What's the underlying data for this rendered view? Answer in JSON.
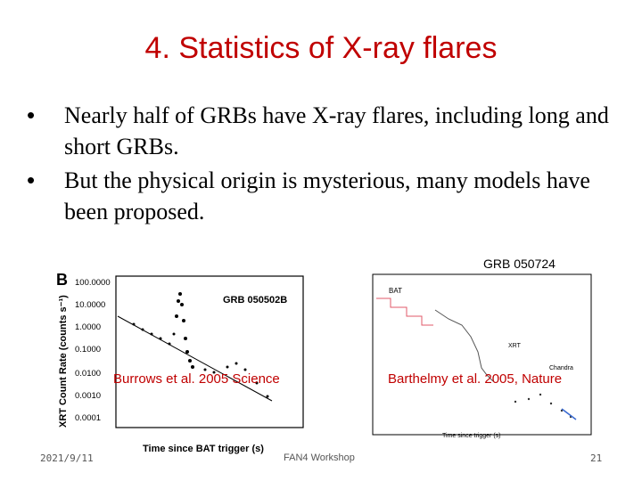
{
  "slide": {
    "title": "4. Statistics of X-ray flares",
    "bullets": [
      "Nearly half of GRBs have X-ray flares, including long and short GRBs.",
      "But the physical origin is mysterious, many models have been proposed."
    ],
    "bullet_symbol": "•"
  },
  "figures": {
    "left": {
      "panel_letter": "B",
      "grb_label": "GRB 050502B",
      "y_axis_label": "XRT Count Rate (counts s⁻¹)",
      "x_axis_label": "Time since BAT trigger (s)",
      "y_ticks": [
        "100.0000",
        "10.0000",
        "1.0000",
        "0.1000",
        "0.0100",
        "0.0010",
        "0.0001"
      ],
      "caption": "Burrows et al. 2005 Science"
    },
    "right": {
      "grb_label": "GRB 050724",
      "bat_label": "BAT",
      "xrt_label": "XRT",
      "chandra_label": "Chandra",
      "x_axis_label": "Time since trigger (s)",
      "caption": "Barthelmy et al. 2005, Nature"
    }
  },
  "footer": {
    "date": "2021/9/11",
    "event": "FAN4 Workshop",
    "page": "21"
  }
}
